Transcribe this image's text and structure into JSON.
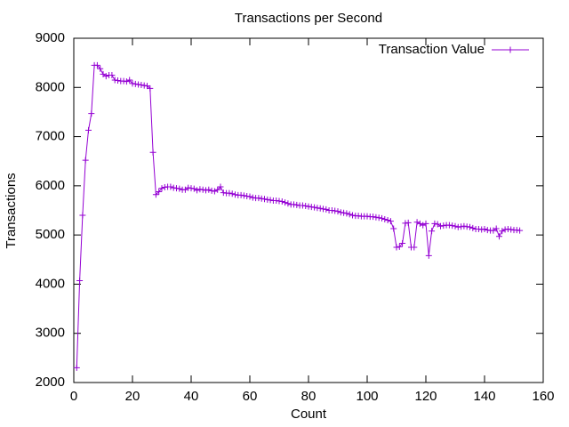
{
  "chart_data": {
    "type": "line",
    "title": "Transactions per Second",
    "x_label": "Count",
    "y_label": "Transactions",
    "legend": "top-right",
    "x": [
      1,
      2,
      3,
      4,
      5,
      6,
      7,
      8,
      9,
      10,
      11,
      12,
      13,
      14,
      15,
      16,
      17,
      18,
      19,
      20,
      21,
      22,
      23,
      24,
      25,
      26,
      27,
      28,
      29,
      30,
      31,
      32,
      33,
      34,
      35,
      36,
      37,
      38,
      39,
      40,
      41,
      42,
      43,
      44,
      45,
      46,
      47,
      48,
      49,
      50,
      51,
      52,
      53,
      54,
      55,
      56,
      57,
      58,
      59,
      60,
      61,
      62,
      63,
      64,
      65,
      66,
      67,
      68,
      69,
      70,
      71,
      72,
      73,
      74,
      75,
      76,
      77,
      78,
      79,
      80,
      81,
      82,
      83,
      84,
      85,
      86,
      87,
      88,
      89,
      90,
      91,
      92,
      93,
      94,
      95,
      96,
      97,
      98,
      99,
      100,
      101,
      102,
      103,
      104,
      105,
      106,
      107,
      108,
      109,
      110,
      111,
      112,
      113,
      114,
      115,
      116,
      117,
      118,
      119,
      120,
      121,
      122,
      123,
      124,
      125,
      126,
      127,
      128,
      129,
      130,
      131,
      132,
      133,
      134,
      135,
      136,
      137,
      138,
      139,
      140,
      141,
      142,
      143,
      144,
      145,
      146,
      147,
      148,
      149,
      150,
      151,
      152
    ],
    "series": [
      {
        "name": "Transaction Value",
        "color": "#9400d3",
        "values": [
          2300,
          4070,
          5400,
          6520,
          7130,
          7470,
          8450,
          8450,
          8380,
          8270,
          8230,
          8250,
          8250,
          8150,
          8140,
          8130,
          8130,
          8120,
          8150,
          8080,
          8070,
          8060,
          8050,
          8040,
          8030,
          7980,
          6680,
          5820,
          5880,
          5950,
          5970,
          5980,
          5980,
          5960,
          5950,
          5940,
          5920,
          5920,
          5960,
          5950,
          5940,
          5910,
          5930,
          5920,
          5910,
          5920,
          5900,
          5890,
          5920,
          5980,
          5860,
          5850,
          5850,
          5840,
          5820,
          5810,
          5810,
          5800,
          5790,
          5780,
          5760,
          5750,
          5750,
          5740,
          5730,
          5720,
          5710,
          5700,
          5700,
          5690,
          5680,
          5660,
          5640,
          5620,
          5620,
          5610,
          5600,
          5600,
          5590,
          5580,
          5570,
          5560,
          5550,
          5540,
          5530,
          5520,
          5500,
          5500,
          5490,
          5480,
          5460,
          5450,
          5440,
          5420,
          5400,
          5390,
          5390,
          5380,
          5380,
          5380,
          5370,
          5370,
          5360,
          5350,
          5340,
          5320,
          5300,
          5280,
          5130,
          4750,
          4760,
          4830,
          5240,
          5250,
          4750,
          4750,
          5260,
          5230,
          5200,
          5230,
          4580,
          5080,
          5230,
          5220,
          5180,
          5190,
          5200,
          5200,
          5190,
          5180,
          5160,
          5170,
          5180,
          5170,
          5160,
          5140,
          5120,
          5120,
          5110,
          5120,
          5100,
          5090,
          5090,
          5130,
          4970,
          5080,
          5110,
          5120,
          5110,
          5100,
          5100,
          5090
        ]
      }
    ],
    "xlim": [
      0,
      160
    ],
    "xticks": [
      0,
      20,
      40,
      60,
      80,
      100,
      120,
      140,
      160
    ],
    "ylim": [
      2000,
      9000
    ],
    "yticks": [
      2000,
      3000,
      4000,
      5000,
      6000,
      7000,
      8000,
      9000
    ]
  }
}
